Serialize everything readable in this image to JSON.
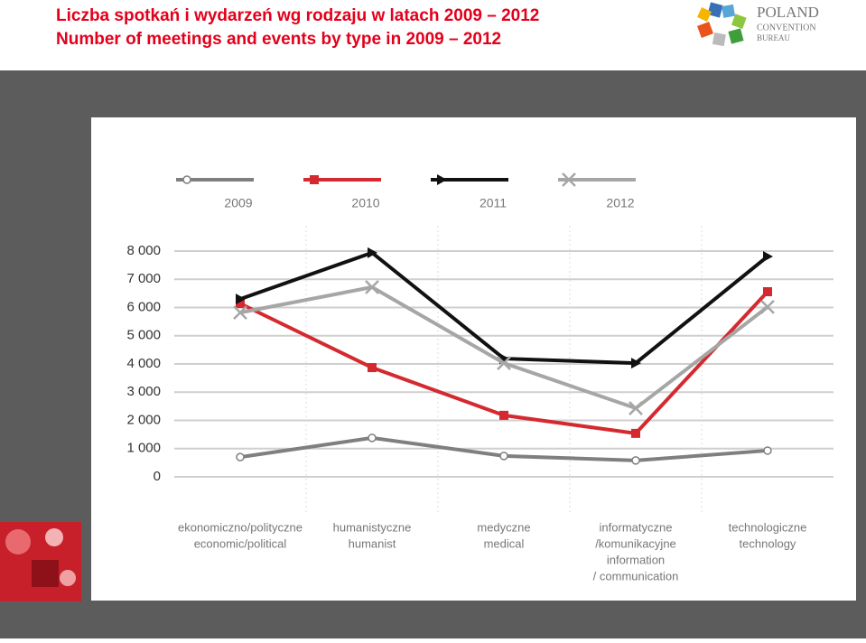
{
  "header": {
    "title_pl": "Liczba spotkań i wydarzeń wg rodzaju w latach 2009 – 2012",
    "title_en": "Number of meetings and events by type in 2009 – 2012",
    "logo": [
      "POLAND",
      "CONVENTION",
      "BUREAU"
    ]
  },
  "chart_data": {
    "type": "line",
    "categories": [
      [
        "ekonomiczno/polityczne",
        "economic/political"
      ],
      [
        "humanistyczne",
        "humanist"
      ],
      [
        "medyczne",
        "medical"
      ],
      [
        "informatyczne",
        "/komunikacyjne",
        "information",
        "/ communication"
      ],
      [
        "technologiczne",
        "technology"
      ]
    ],
    "series": [
      {
        "name": "2009",
        "color": "#7f7f7f",
        "marker": "circle",
        "values": [
          700,
          1380,
          740,
          580,
          930
        ]
      },
      {
        "name": "2010",
        "color": "#d42a2f",
        "marker": "square",
        "values": [
          6140,
          3870,
          2180,
          1540,
          6560
        ]
      },
      {
        "name": "2011",
        "color": "#111111",
        "marker": "triangle",
        "values": [
          6300,
          7940,
          4190,
          4030,
          7810
        ]
      },
      {
        "name": "2012",
        "color": "#a6a6a6",
        "marker": "x",
        "values": [
          5820,
          6720,
          4030,
          2430,
          6020
        ]
      }
    ],
    "ylim": [
      0,
      8000
    ],
    "yticks": [
      0,
      {
        "value": 1000,
        "label": "1 000"
      },
      {
        "value": 2000,
        "label": "2 000"
      },
      {
        "value": 3000,
        "label": "3 000"
      },
      {
        "value": 4000,
        "label": "4 000"
      },
      {
        "value": 5000,
        "label": "5 000"
      },
      {
        "value": 6000,
        "label": "6 000"
      },
      {
        "value": 7000,
        "label": "7 000"
      },
      {
        "value": 8000,
        "label": "8 000"
      }
    ],
    "grid": true,
    "legend": "top"
  }
}
